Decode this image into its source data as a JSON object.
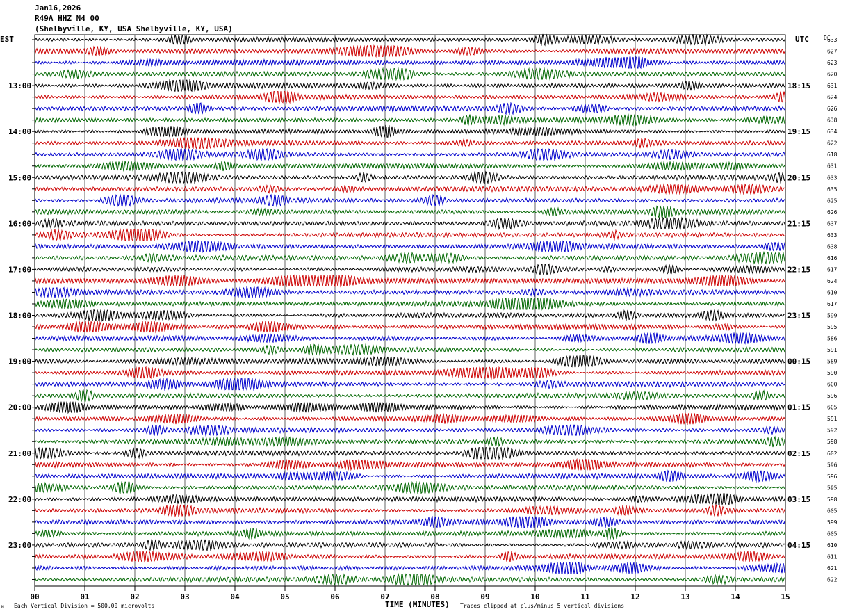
{
  "header": {
    "date": "Jan16,2026",
    "station": "R49A HHZ N4 00",
    "location": "(Shelbyville, KY, USA Shelbyville, KY, USA)"
  },
  "left_zone_label": "EST",
  "right_zone_label": "UTC",
  "dc_label": "DC",
  "footer": {
    "scale_note": "Each Vertical Division =  500.00 microvolts",
    "clip_note": "Traces clipped at plus/minus 5 vertical divisions",
    "corner_mark": "M"
  },
  "colors": [
    "#000000",
    "#cc0000",
    "#0000cc",
    "#006600"
  ],
  "chart_data": {
    "type": "line",
    "title": "",
    "xlabel": "TIME (MINUTES)",
    "ylabel": "",
    "xlim": [
      0,
      15
    ],
    "x_ticks": [
      "00",
      "01",
      "02",
      "03",
      "04",
      "05",
      "06",
      "07",
      "08",
      "09",
      "10",
      "11",
      "12",
      "13",
      "14",
      "15"
    ],
    "left_hour_labels": [
      "13:00",
      "14:00",
      "15:00",
      "16:00",
      "17:00",
      "18:00",
      "19:00",
      "20:00",
      "21:00",
      "22:00",
      "23:00"
    ],
    "right_hour_labels": [
      "18:15",
      "19:15",
      "20:15",
      "21:15",
      "22:15",
      "23:15",
      "00:15",
      "01:15",
      "02:15",
      "03:15",
      "04:15"
    ],
    "dc_offsets": [
      633,
      627,
      623,
      620,
      631,
      624,
      626,
      638,
      634,
      622,
      618,
      631,
      633,
      635,
      625,
      626,
      637,
      633,
      638,
      616,
      617,
      624,
      610,
      617,
      599,
      595,
      586,
      591,
      589,
      590,
      600,
      596,
      605,
      591,
      592,
      598,
      602,
      596,
      596,
      595,
      598,
      605,
      599,
      605,
      610,
      611,
      621,
      622
    ],
    "grid": true
  }
}
